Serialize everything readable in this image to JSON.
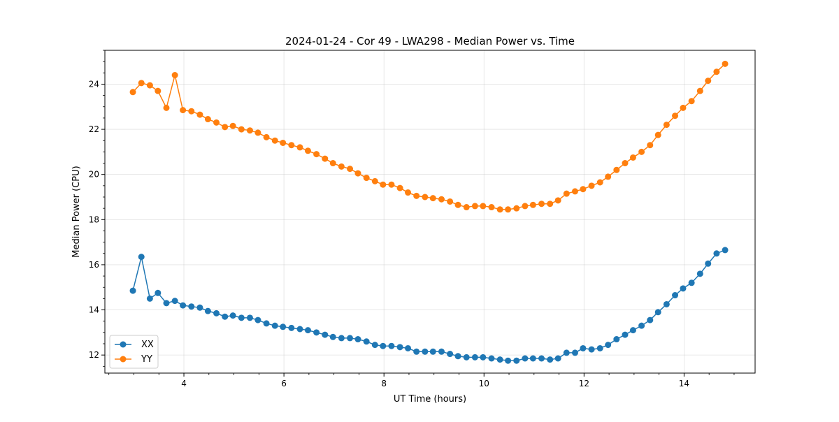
{
  "chart_data": {
    "type": "line",
    "title": "2024-01-24 - Cor 49 - LWA298 - Median Power vs. Time",
    "xlabel": "UT Time (hours)",
    "ylabel": "Median Power (CPU)",
    "xlim": [
      2.42,
      15.42
    ],
    "ylim": [
      11.2,
      25.5
    ],
    "xticks": [
      4,
      6,
      8,
      10,
      12,
      14
    ],
    "xtick_labels": [
      "4",
      "6",
      "8",
      "10",
      "12",
      "14"
    ],
    "yticks": [
      12,
      14,
      16,
      18,
      20,
      22,
      24
    ],
    "ytick_labels": [
      "12",
      "14",
      "16",
      "18",
      "20",
      "22",
      "24"
    ],
    "grid": true,
    "legend_position": "lower-left",
    "x": [
      2.98,
      3.15,
      3.32,
      3.48,
      3.65,
      3.82,
      3.98,
      4.15,
      4.32,
      4.48,
      4.65,
      4.82,
      4.98,
      5.15,
      5.32,
      5.48,
      5.65,
      5.82,
      5.98,
      6.15,
      6.32,
      6.48,
      6.65,
      6.82,
      6.98,
      7.15,
      7.32,
      7.48,
      7.65,
      7.82,
      7.98,
      8.15,
      8.32,
      8.48,
      8.65,
      8.82,
      8.98,
      9.15,
      9.32,
      9.48,
      9.65,
      9.82,
      9.98,
      10.15,
      10.32,
      10.48,
      10.65,
      10.82,
      10.98,
      11.15,
      11.32,
      11.48,
      11.65,
      11.82,
      11.98,
      12.15,
      12.32,
      12.48,
      12.65,
      12.82,
      12.98,
      13.15,
      13.32,
      13.48,
      13.65,
      13.82,
      13.98,
      14.15,
      14.32,
      14.48,
      14.65,
      14.82
    ],
    "series": [
      {
        "name": "XX",
        "color": "#1f77b4",
        "values": [
          14.85,
          16.35,
          14.5,
          14.75,
          14.3,
          14.4,
          14.2,
          14.15,
          14.1,
          13.95,
          13.85,
          13.7,
          13.75,
          13.65,
          13.65,
          13.55,
          13.4,
          13.3,
          13.25,
          13.2,
          13.15,
          13.1,
          13.0,
          12.9,
          12.8,
          12.75,
          12.75,
          12.7,
          12.6,
          12.45,
          12.4,
          12.4,
          12.35,
          12.3,
          12.15,
          12.15,
          12.15,
          12.15,
          12.05,
          11.95,
          11.9,
          11.9,
          11.9,
          11.85,
          11.8,
          11.75,
          11.75,
          11.85,
          11.85,
          11.85,
          11.8,
          11.85,
          12.1,
          12.1,
          12.3,
          12.25,
          12.3,
          12.45,
          12.7,
          12.9,
          13.1,
          13.3,
          13.55,
          13.9,
          14.25,
          14.65,
          14.95,
          15.2,
          15.6,
          16.05,
          16.5,
          16.65
        ]
      },
      {
        "name": "YY",
        "color": "#ff7f0e",
        "values": [
          23.65,
          24.05,
          23.95,
          23.7,
          22.95,
          24.4,
          22.85,
          22.8,
          22.65,
          22.45,
          22.3,
          22.1,
          22.15,
          22.0,
          21.95,
          21.85,
          21.65,
          21.5,
          21.4,
          21.3,
          21.2,
          21.05,
          20.9,
          20.7,
          20.5,
          20.35,
          20.25,
          20.05,
          19.85,
          19.7,
          19.55,
          19.55,
          19.4,
          19.2,
          19.05,
          19.0,
          18.95,
          18.9,
          18.8,
          18.65,
          18.55,
          18.6,
          18.6,
          18.55,
          18.45,
          18.45,
          18.5,
          18.6,
          18.65,
          18.7,
          18.7,
          18.85,
          19.15,
          19.25,
          19.35,
          19.5,
          19.65,
          19.9,
          20.2,
          20.5,
          20.75,
          21.0,
          21.3,
          21.75,
          22.2,
          22.6,
          22.95,
          23.25,
          23.7,
          24.15,
          24.55,
          24.9
        ]
      }
    ]
  }
}
